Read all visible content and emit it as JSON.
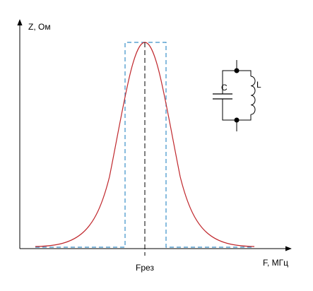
{
  "axes": {
    "y_label": "Z, Ом",
    "x_label": "F, МГц",
    "x_marker": "Fрез"
  },
  "circuit": {
    "capacitor": "C",
    "inductor": "L"
  }
}
